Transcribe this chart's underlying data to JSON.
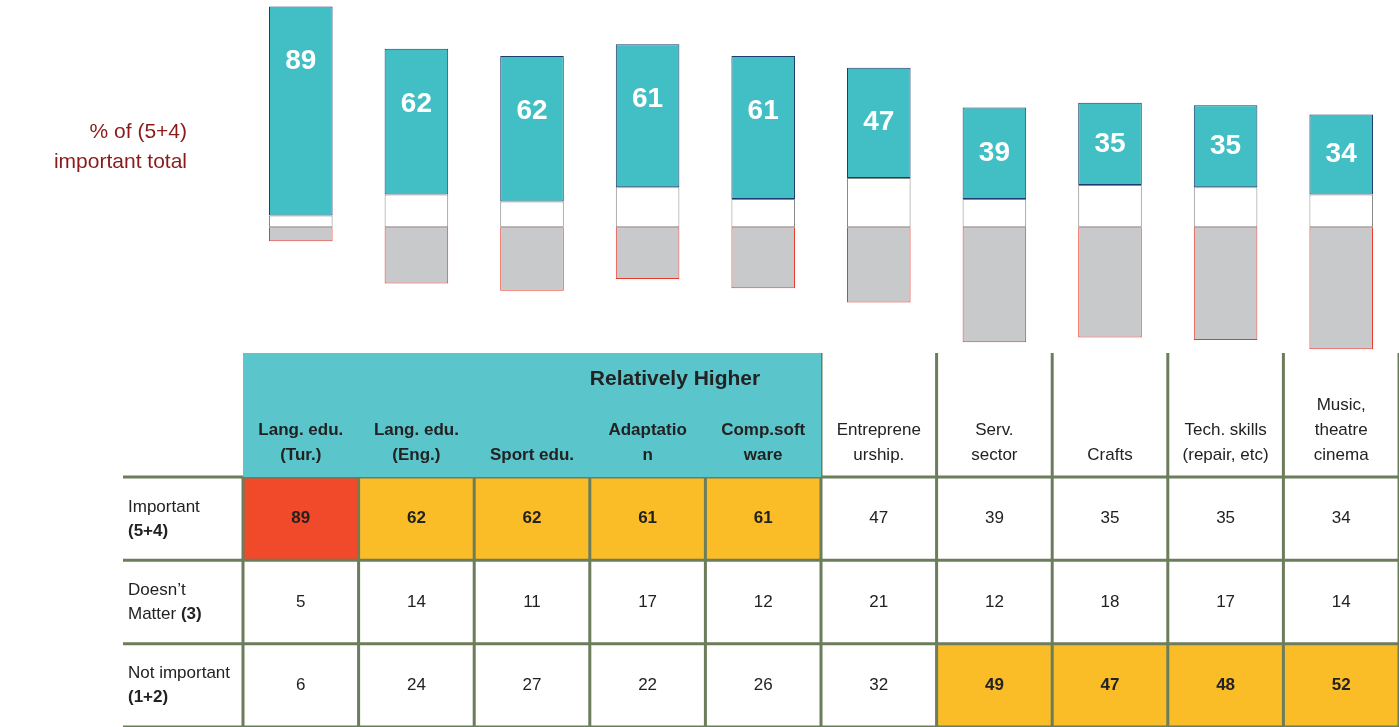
{
  "chart_data": [
    {
      "type": "bar",
      "stacked": true,
      "legend": false,
      "ylabel": "% of (5+4) important total",
      "categories": [
        null,
        null,
        null,
        null,
        null,
        null,
        null,
        null,
        null,
        null
      ],
      "series": [
        {
          "color": "#ffffff",
          "values": [
            5,
            14,
            11,
            17,
            12,
            21,
            12,
            18,
            17,
            14
          ]
        },
        {
          "color": "#41bfc4",
          "values": [
            89,
            62,
            62,
            61,
            61,
            47,
            39,
            35,
            35,
            34
          ],
          "value_labels": [
            "89",
            "62",
            "62",
            "61",
            "61",
            "47",
            "39",
            "35",
            "35",
            "34"
          ]
        },
        {
          "color": "#c8c9cb",
          "values": [
            -6,
            -24,
            -27,
            -22,
            -26,
            -32,
            -49,
            -47,
            -48,
            -52
          ]
        }
      ]
    },
    {
      "type": "heatmap",
      "data_labels": true,
      "annotations": [
        "Relatively Higher"
      ],
      "categories": [
        "Lang. edu. (Tur.)",
        "Lang. edu. (Eng.)",
        "Sport edu.",
        "Adaptation",
        "Comp.software",
        "Entrepreneurship.",
        "Serv. sector",
        "Crafts",
        "Tech. skills (repair, etc)",
        "Music, theatre cinema"
      ],
      "y_categories": [
        "Important (5+4)",
        "Doesn’t Matter (3)",
        "Not important (1+2)"
      ],
      "cells": [
        [
          89,
          62,
          62,
          61,
          61,
          47,
          39,
          35,
          35,
          34
        ],
        [
          5,
          14,
          11,
          17,
          12,
          21,
          12,
          18,
          17,
          14
        ],
        [
          6,
          24,
          27,
          22,
          26,
          32,
          49,
          47,
          48,
          52
        ]
      ]
    }
  ]
}
